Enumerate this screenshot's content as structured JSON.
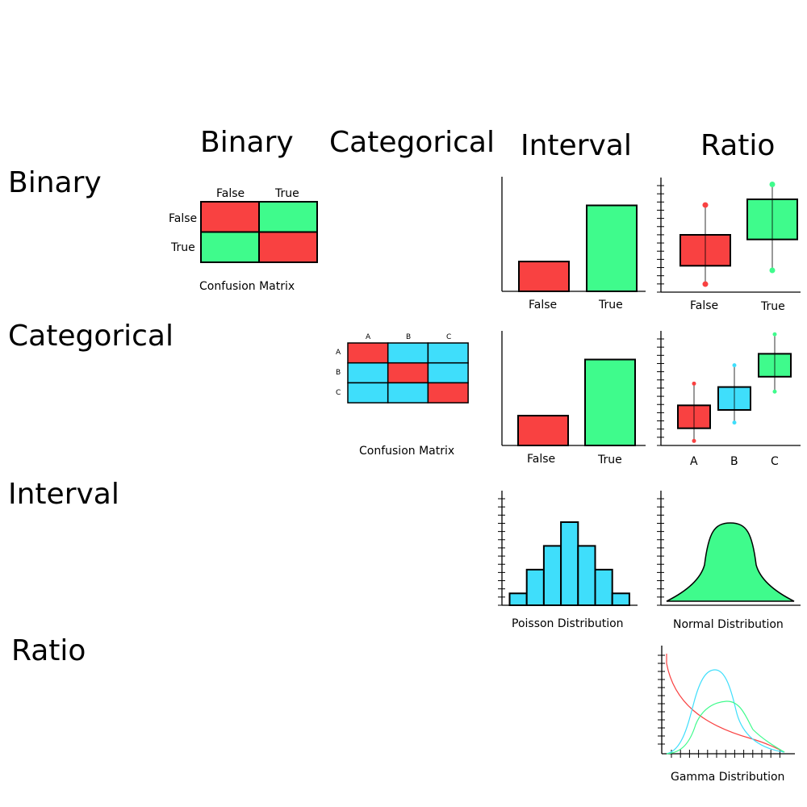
{
  "colors": {
    "red": "#f94141",
    "green": "#3ffb8c",
    "blue": "#3fdefb"
  },
  "column_headers": [
    "Binary",
    "Categorical",
    "Interval",
    "Ratio"
  ],
  "row_headers": [
    "Binary",
    "Categorical",
    "Interval",
    "Ratio"
  ],
  "binary_confusion": {
    "col_labels": [
      "False",
      "True"
    ],
    "row_labels": [
      "False",
      "True"
    ],
    "cells": [
      [
        "red",
        "green"
      ],
      [
        "green",
        "red"
      ]
    ],
    "caption": "Confusion Matrix"
  },
  "categorical_confusion": {
    "col_labels": [
      "A",
      "B",
      "C"
    ],
    "row_labels": [
      "A",
      "B",
      "C"
    ],
    "cells": [
      [
        "red",
        "blue",
        "blue"
      ],
      [
        "blue",
        "red",
        "blue"
      ],
      [
        "blue",
        "blue",
        "red"
      ]
    ],
    "caption": "Confusion Matrix"
  },
  "chart_data": [
    {
      "type": "bar",
      "id": "binary-interval",
      "categories": [
        "False",
        "True"
      ],
      "values": [
        0.26,
        0.75
      ],
      "colors": [
        "red",
        "green"
      ],
      "ylim": [
        0,
        1
      ]
    },
    {
      "type": "box",
      "id": "binary-ratio",
      "categories": [
        "False",
        "True"
      ],
      "boxes": [
        {
          "min": 0.07,
          "q1": 0.23,
          "q3": 0.5,
          "max": 0.76,
          "color": "red"
        },
        {
          "min": 0.19,
          "q1": 0.46,
          "q3": 0.81,
          "max": 0.94,
          "color": "green"
        }
      ],
      "ylim": [
        0,
        1
      ]
    },
    {
      "type": "bar",
      "id": "categorical-interval",
      "categories": [
        "False",
        "True"
      ],
      "values": [
        0.26,
        0.75
      ],
      "colors": [
        "red",
        "green"
      ],
      "ylim": [
        0,
        1
      ]
    },
    {
      "type": "box",
      "id": "categorical-ratio",
      "categories": [
        "A",
        "B",
        "C"
      ],
      "boxes": [
        {
          "min": 0.04,
          "q1": 0.15,
          "q3": 0.35,
          "max": 0.54,
          "color": "red"
        },
        {
          "min": 0.2,
          "q1": 0.31,
          "q3": 0.51,
          "max": 0.7,
          "color": "blue"
        },
        {
          "min": 0.47,
          "q1": 0.6,
          "q3": 0.8,
          "max": 0.97,
          "color": "green"
        }
      ],
      "ylim": [
        0,
        1
      ]
    },
    {
      "type": "bar",
      "id": "poisson",
      "title": "Poisson Distribution",
      "values": [
        1,
        3,
        5,
        7,
        5,
        3,
        1
      ],
      "color": "blue",
      "ylim": [
        0,
        8
      ]
    },
    {
      "type": "area",
      "id": "normal",
      "title": "Normal Distribution",
      "color": "green"
    },
    {
      "type": "line",
      "id": "gamma",
      "title": "Gamma Distribution",
      "series": [
        {
          "color": "red"
        },
        {
          "color": "blue"
        },
        {
          "color": "green"
        }
      ]
    }
  ]
}
